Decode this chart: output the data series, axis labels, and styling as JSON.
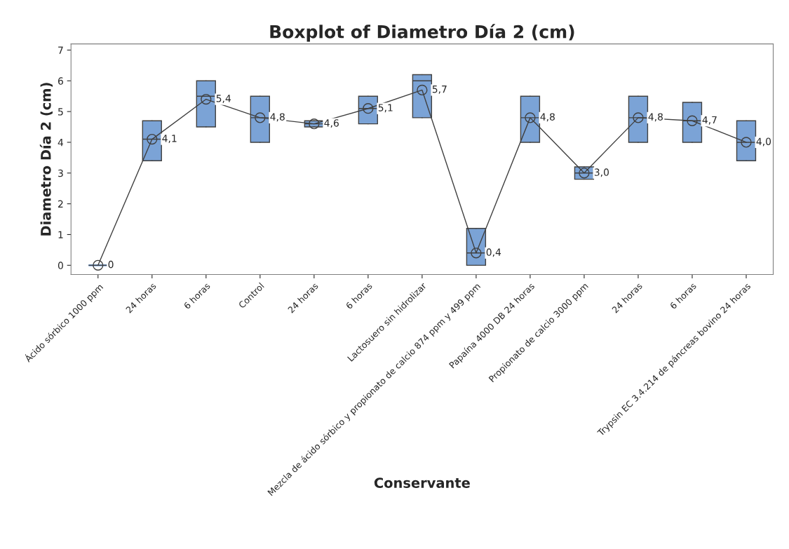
{
  "chart_data": {
    "type": "box",
    "title": "Boxplot of Diametro Día 2 (cm)",
    "xlabel": "Conservante",
    "ylabel": "Diametro Día 2 (cm)",
    "categories": [
      "Ácido sórbico 1000 ppm",
      "24 horas",
      "6 horas",
      "Control",
      "24 horas",
      "6 horas",
      "Lactosuero sin hidrolizar",
      "Mezcla de ácido sórbico y propionato de calcio 874 ppm y 499 ppm",
      "Papaína 4000 DB 24 horas",
      "Propionato de calcio 3000 ppm",
      "24 horas",
      "6 horas",
      "Trypsin EC 3.4.214 de páncreas bovino 24 horas"
    ],
    "color": "#7ba3d6",
    "boxes": [
      {
        "low": 0,
        "q1": 0,
        "median": 0,
        "q3": 0,
        "high": 0
      },
      {
        "low": 3.4,
        "q1": 3.4,
        "median": 4.1,
        "q3": 4.7,
        "high": 4.7
      },
      {
        "low": 4.5,
        "q1": 4.5,
        "median": 5.5,
        "q3": 6.0,
        "high": 6.0
      },
      {
        "low": 4.0,
        "q1": 4.0,
        "median": 4.8,
        "q3": 5.5,
        "high": 5.5
      },
      {
        "low": 4.5,
        "q1": 4.5,
        "median": 4.6,
        "q3": 4.7,
        "high": 4.7
      },
      {
        "low": 4.6,
        "q1": 4.6,
        "median": 5.1,
        "q3": 5.5,
        "high": 5.5
      },
      {
        "low": 4.8,
        "q1": 4.8,
        "median": 6.0,
        "q3": 6.2,
        "high": 6.2
      },
      {
        "low": 0.0,
        "q1": 0.0,
        "median": 0.4,
        "q3": 1.2,
        "high": 1.2
      },
      {
        "low": 4.0,
        "q1": 4.0,
        "median": 4.8,
        "q3": 5.5,
        "high": 5.5
      },
      {
        "low": 2.8,
        "q1": 2.8,
        "median": 3.0,
        "q3": 3.2,
        "high": 3.2
      },
      {
        "low": 4.0,
        "q1": 4.0,
        "median": 4.8,
        "q3": 5.5,
        "high": 5.5
      },
      {
        "low": 4.0,
        "q1": 4.0,
        "median": 4.7,
        "q3": 5.3,
        "high": 5.3
      },
      {
        "low": 3.4,
        "q1": 3.4,
        "median": 4.0,
        "q3": 4.7,
        "high": 4.7
      }
    ],
    "series": [
      {
        "type": "line",
        "color": "#404040",
        "marker": "circle",
        "values": [
          0,
          4.1,
          5.4,
          4.8,
          4.6,
          5.1,
          5.7,
          0.4,
          4.8,
          3.0,
          4.8,
          4.7,
          4.0
        ],
        "value_labels": [
          "0",
          "4,1",
          "5,4",
          "4,8",
          "4,6",
          "5,1",
          "5,7",
          "0,4",
          "4,8",
          "3,0",
          "4,8",
          "4,7",
          "4,0"
        ]
      }
    ],
    "ylim": [
      -0.3,
      7.2
    ],
    "yticks": [
      0,
      1,
      2,
      3,
      4,
      5,
      6,
      7
    ],
    "grid": false
  }
}
